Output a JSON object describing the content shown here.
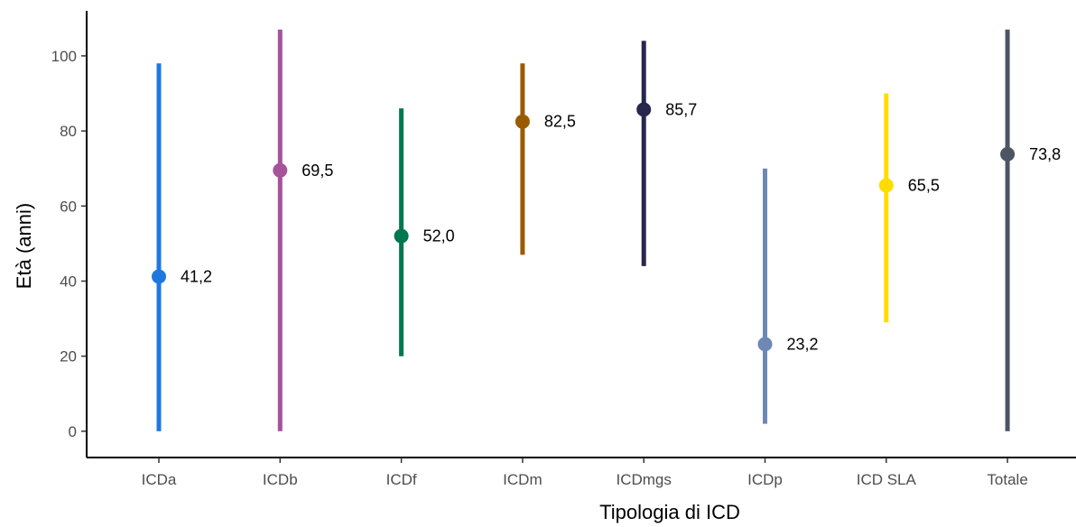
{
  "chart_data": {
    "type": "errorbar-point",
    "xlabel": "Tipologia di ICD",
    "ylabel": "Età (anni)",
    "ylim": [
      -7,
      112
    ],
    "yticks": [
      0,
      20,
      40,
      60,
      80,
      100
    ],
    "grid": false,
    "legend": "none",
    "categories": [
      "ICDa",
      "ICDb",
      "ICDf",
      "ICDm",
      "ICDmgs",
      "ICDp",
      "ICD SLA",
      "Totale"
    ],
    "points": [
      {
        "category": "ICDa",
        "value": 41.2,
        "label": "41,2",
        "min": 0,
        "max": 98,
        "color": "#1f78e0"
      },
      {
        "category": "ICDb",
        "value": 69.5,
        "label": "69,5",
        "min": 0,
        "max": 107,
        "color": "#a6539a"
      },
      {
        "category": "ICDf",
        "value": 52.0,
        "label": "52,0",
        "min": 20,
        "max": 86,
        "color": "#00784f"
      },
      {
        "category": "ICDm",
        "value": 82.5,
        "label": "82,5",
        "min": 47,
        "max": 98,
        "color": "#9a5b00"
      },
      {
        "category": "ICDmgs",
        "value": 85.7,
        "label": "85,7",
        "min": 44,
        "max": 104,
        "color": "#27264d"
      },
      {
        "category": "ICDp",
        "value": 23.2,
        "label": "23,2",
        "min": 2,
        "max": 70,
        "color": "#6e88b5"
      },
      {
        "category": "ICD SLA",
        "value": 65.5,
        "label": "65,5",
        "min": 29,
        "max": 90,
        "color": "#ffdc00"
      },
      {
        "category": "Totale",
        "value": 73.8,
        "label": "73,8",
        "min": 0,
        "max": 107,
        "color": "#4c5560"
      }
    ]
  }
}
